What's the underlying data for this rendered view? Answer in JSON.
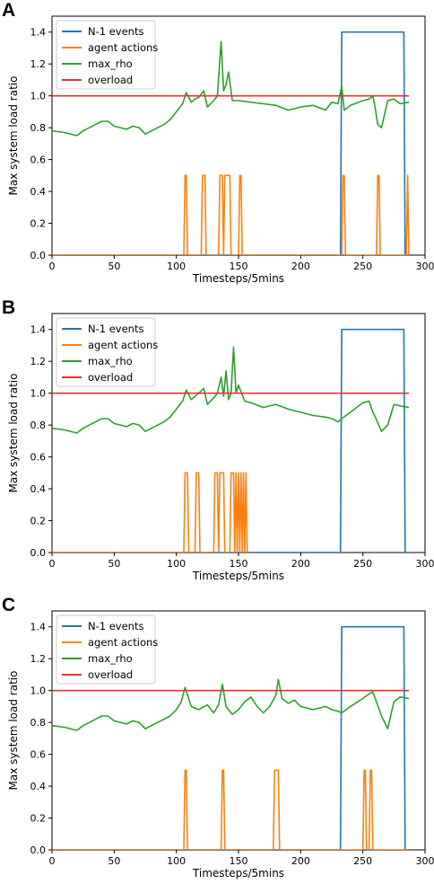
{
  "panels": [
    {
      "label": "A"
    },
    {
      "label": "B"
    },
    {
      "label": "C"
    }
  ],
  "colors": {
    "n1": "#1f77b4",
    "agent": "#ff7f0e",
    "rho": "#2ca02c",
    "overload": "#e83030"
  },
  "chart_data": [
    {
      "type": "line",
      "xlabel": "Timesteps/5mins",
      "ylabel": "Max system load ratio",
      "xlim": [
        0,
        300
      ],
      "ylim": [
        0,
        1.5
      ],
      "xticks": [
        0,
        50,
        100,
        150,
        200,
        250,
        300
      ],
      "yticks": [
        0.0,
        0.2,
        0.4,
        0.6,
        0.8,
        1.0,
        1.2,
        1.4
      ],
      "grid": false,
      "legend_position": "top-left",
      "series": [
        {
          "name": "N-1 events",
          "x": [
            0,
            232,
            233,
            283,
            284,
            287
          ],
          "y": [
            0,
            0,
            1.4,
            1.4,
            0,
            0
          ]
        },
        {
          "name": "agent actions",
          "x": [
            0,
            106,
            107,
            108,
            109,
            120,
            121,
            123,
            124,
            134,
            135,
            137,
            138,
            139,
            140,
            143,
            144,
            150,
            151,
            152,
            153,
            233,
            234,
            235,
            236,
            261,
            262,
            263,
            264,
            285,
            286,
            287
          ],
          "y": [
            0,
            0,
            0.5,
            0.5,
            0,
            0,
            0.5,
            0.5,
            0,
            0,
            0.5,
            0.5,
            0,
            0.5,
            0.5,
            0.5,
            0,
            0,
            0.5,
            0.5,
            0,
            0,
            0.5,
            0.5,
            0,
            0,
            0.5,
            0.5,
            0,
            0,
            0.5,
            0
          ],
          "note_ignore": ""
        },
        {
          "name": "max_rho",
          "x": [
            0,
            10,
            20,
            25,
            35,
            40,
            45,
            50,
            55,
            60,
            65,
            70,
            75,
            80,
            90,
            95,
            100,
            105,
            108,
            112,
            115,
            118,
            122,
            125,
            130,
            133,
            136,
            138,
            140,
            142,
            145,
            150,
            160,
            170,
            180,
            190,
            200,
            210,
            220,
            225,
            230,
            233,
            235,
            240,
            250,
            255,
            258,
            260,
            262,
            265,
            270,
            275,
            280,
            287
          ],
          "y": [
            0.78,
            0.77,
            0.75,
            0.78,
            0.82,
            0.84,
            0.84,
            0.81,
            0.8,
            0.79,
            0.81,
            0.8,
            0.76,
            0.78,
            0.82,
            0.85,
            0.9,
            0.95,
            1.02,
            0.96,
            0.98,
            0.99,
            1.03,
            0.93,
            0.97,
            1.0,
            1.34,
            1.03,
            1.07,
            1.15,
            0.97,
            0.97,
            0.96,
            0.95,
            0.94,
            0.91,
            0.93,
            0.94,
            0.91,
            0.96,
            0.95,
            1.06,
            0.91,
            0.94,
            0.97,
            0.98,
            1.0,
            0.92,
            0.82,
            0.8,
            0.97,
            0.98,
            0.95,
            0.96
          ]
        },
        {
          "name": "overload",
          "x": [
            0,
            287
          ],
          "y": [
            1.0,
            1.0
          ]
        }
      ]
    },
    {
      "type": "line",
      "xlabel": "Timesteps/5mins",
      "ylabel": "Max system load ratio",
      "xlim": [
        0,
        300
      ],
      "ylim": [
        0,
        1.5
      ],
      "xticks": [
        0,
        50,
        100,
        150,
        200,
        250,
        300
      ],
      "yticks": [
        0.0,
        0.2,
        0.4,
        0.6,
        0.8,
        1.0,
        1.2,
        1.4
      ],
      "grid": false,
      "legend_position": "top-left",
      "series": [
        {
          "name": "N-1 events",
          "x": [
            0,
            232,
            233,
            283,
            284,
            287
          ],
          "y": [
            0,
            0,
            1.4,
            1.4,
            0,
            0
          ]
        },
        {
          "name": "agent actions",
          "x": [
            0,
            106,
            107,
            109,
            110,
            115,
            116,
            118,
            119,
            130,
            131,
            133,
            134,
            135,
            136,
            138,
            139,
            143,
            144,
            146,
            147,
            148,
            149,
            150,
            151,
            152,
            153,
            154,
            155,
            156,
            157
          ],
          "y": [
            0,
            0,
            0.5,
            0.5,
            0,
            0,
            0.5,
            0.5,
            0,
            0,
            0.5,
            0.5,
            0,
            0.5,
            0.5,
            0.5,
            0,
            0,
            0.5,
            0.5,
            0,
            0.5,
            0,
            0.5,
            0,
            0.5,
            0,
            0.5,
            0,
            0.5,
            0
          ]
        },
        {
          "name": "max_rho",
          "x": [
            0,
            10,
            20,
            25,
            35,
            40,
            45,
            50,
            55,
            60,
            65,
            70,
            75,
            80,
            90,
            95,
            100,
            105,
            108,
            112,
            115,
            118,
            122,
            125,
            130,
            133,
            136,
            138,
            140,
            142,
            144,
            146,
            148,
            150,
            155,
            160,
            170,
            180,
            190,
            200,
            210,
            220,
            225,
            230,
            233,
            240,
            250,
            255,
            258,
            260,
            265,
            270,
            275,
            280,
            287
          ],
          "y": [
            0.78,
            0.77,
            0.75,
            0.78,
            0.82,
            0.84,
            0.84,
            0.81,
            0.8,
            0.79,
            0.81,
            0.8,
            0.76,
            0.78,
            0.82,
            0.85,
            0.9,
            0.95,
            1.02,
            0.96,
            0.98,
            1.0,
            1.03,
            0.93,
            0.97,
            1.0,
            1.1,
            0.98,
            1.14,
            0.96,
            1.0,
            1.29,
            1.0,
            1.05,
            0.95,
            0.94,
            0.91,
            0.93,
            0.9,
            0.88,
            0.86,
            0.85,
            0.84,
            0.82,
            0.84,
            0.88,
            0.94,
            0.95,
            0.88,
            0.85,
            0.76,
            0.8,
            0.93,
            0.92,
            0.91
          ]
        },
        {
          "name": "overload",
          "x": [
            0,
            287
          ],
          "y": [
            1.0,
            1.0
          ]
        }
      ]
    },
    {
      "type": "line",
      "xlabel": "Timesteps/5mins",
      "ylabel": "Max system load ratio",
      "xlim": [
        0,
        300
      ],
      "ylim": [
        0,
        1.5
      ],
      "xticks": [
        0,
        50,
        100,
        150,
        200,
        250,
        300
      ],
      "yticks": [
        0.0,
        0.2,
        0.4,
        0.6,
        0.8,
        1.0,
        1.2,
        1.4
      ],
      "grid": false,
      "legend_position": "top-left",
      "series": [
        {
          "name": "N-1 events",
          "x": [
            0,
            232,
            233,
            283,
            284,
            287
          ],
          "y": [
            0,
            0,
            1.4,
            1.4,
            0,
            0
          ]
        },
        {
          "name": "agent actions",
          "x": [
            0,
            106,
            107,
            108,
            109,
            136,
            137,
            138,
            139,
            178,
            179,
            182,
            183,
            250,
            251,
            252,
            253,
            255,
            256,
            257,
            258,
            287
          ],
          "y": [
            0,
            0,
            0.5,
            0.5,
            0,
            0,
            0.5,
            0.5,
            0,
            0,
            0.5,
            0.5,
            0,
            0,
            0.5,
            0.5,
            0,
            0,
            0.5,
            0.5,
            0,
            0
          ]
        },
        {
          "name": "max_rho",
          "x": [
            0,
            10,
            20,
            25,
            35,
            40,
            45,
            50,
            55,
            60,
            65,
            70,
            75,
            80,
            90,
            95,
            100,
            104,
            107,
            112,
            118,
            125,
            130,
            134,
            137,
            140,
            145,
            150,
            155,
            160,
            165,
            170,
            175,
            180,
            182,
            185,
            190,
            195,
            200,
            210,
            220,
            225,
            230,
            233,
            240,
            250,
            255,
            258,
            260,
            265,
            270,
            275,
            280,
            287
          ],
          "y": [
            0.78,
            0.77,
            0.75,
            0.78,
            0.82,
            0.84,
            0.84,
            0.81,
            0.8,
            0.79,
            0.81,
            0.8,
            0.76,
            0.78,
            0.82,
            0.84,
            0.88,
            0.93,
            1.02,
            0.9,
            0.88,
            0.91,
            0.86,
            0.91,
            1.04,
            0.9,
            0.85,
            0.88,
            0.93,
            0.96,
            0.9,
            0.86,
            0.9,
            0.97,
            1.07,
            0.95,
            0.92,
            0.94,
            0.9,
            0.88,
            0.9,
            0.88,
            0.87,
            0.86,
            0.9,
            0.95,
            0.98,
            0.99,
            0.95,
            0.84,
            0.76,
            0.93,
            0.96,
            0.95
          ]
        },
        {
          "name": "overload",
          "x": [
            0,
            287
          ],
          "y": [
            1.0,
            1.0
          ]
        }
      ]
    }
  ]
}
